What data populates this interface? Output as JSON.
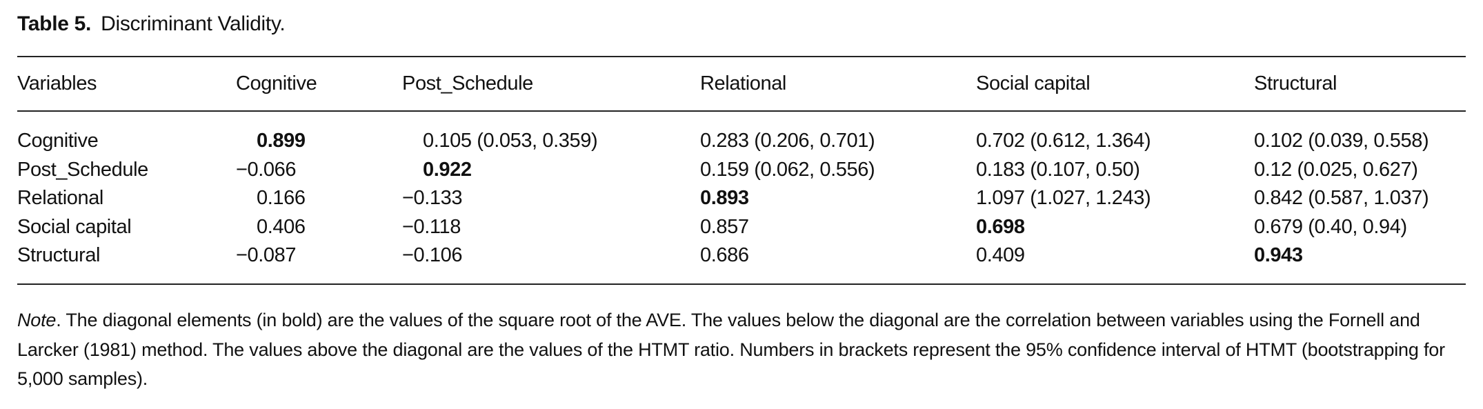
{
  "table": {
    "label": "Table 5.",
    "title": "Discriminant Validity.",
    "headers": [
      "Variables",
      "Cognitive",
      "Post_Schedule",
      "Relational",
      "Social capital",
      "Structural"
    ],
    "rows": [
      {
        "name": "Cognitive",
        "cells": [
          "0.899",
          "0.105 (0.053, 0.359)",
          "0.283 (0.206, 0.701)",
          "0.702 (0.612, 1.364)",
          "0.102 (0.039, 0.558)"
        ],
        "bold_index": 0
      },
      {
        "name": "Post_Schedule",
        "cells": [
          "−0.066",
          "0.922",
          "0.159 (0.062, 0.556)",
          "0.183 (0.107, 0.50)",
          "0.12 (0.025, 0.627)"
        ],
        "bold_index": 1
      },
      {
        "name": "Relational",
        "cells": [
          "0.166",
          "−0.133",
          "0.893",
          "1.097 (1.027, 1.243)",
          "0.842 (0.587, 1.037)"
        ],
        "bold_index": 2
      },
      {
        "name": "Social capital",
        "cells": [
          "0.406",
          "−0.118",
          "0.857",
          "0.698",
          "0.679 (0.40, 0.94)"
        ],
        "bold_index": 3
      },
      {
        "name": "Structural",
        "cells": [
          "−0.087",
          "−0.106",
          "0.686",
          "0.409",
          "0.943"
        ],
        "bold_index": 4
      }
    ],
    "note_label": "Note",
    "note_text": ". The diagonal elements (in bold) are the values of the square root of the AVE. The values below the diagonal are the correlation between variables using the Fornell and Larcker (1981) method. The values above the diagonal are the values of the HTMT ratio. Numbers in brackets represent the 95% confidence interval of HTMT (bootstrapping for 5,000 samples)."
  }
}
